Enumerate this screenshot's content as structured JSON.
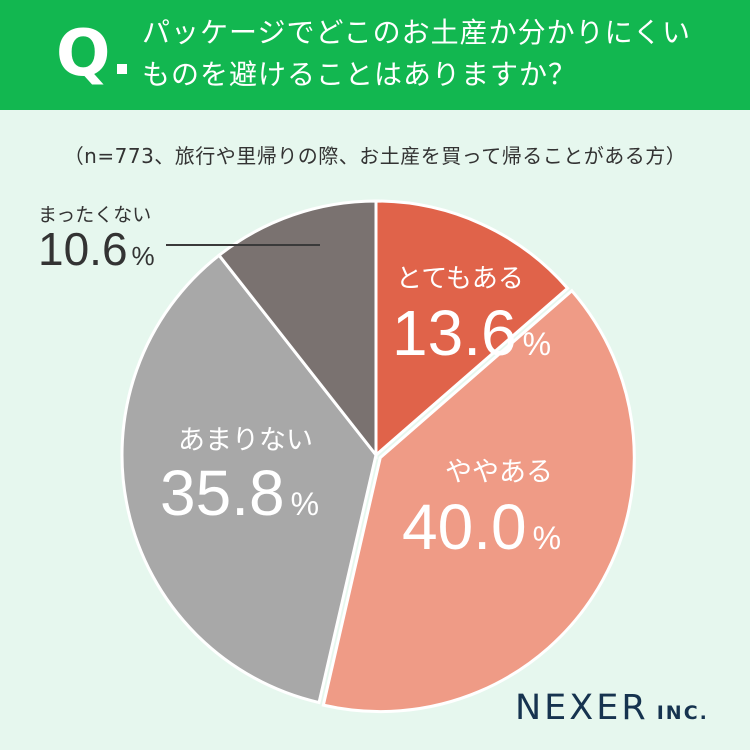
{
  "question": {
    "mark": "Q",
    "line1": "パッケージでどこのお土産か分かりにくい",
    "line2": "ものを避けることはありますか？"
  },
  "sample_note": "（n=773、旅行や里帰りの際、お土産を買って帰ることがある方）",
  "brand": {
    "name": "NEXER",
    "suffix": "INC."
  },
  "colors": {
    "header": "#12b750",
    "background": "#e6f7ee",
    "slice_very": "#e0634a",
    "slice_somewhat": "#ef9b86",
    "slice_notmuch": "#a8a8a8",
    "slice_notatall": "#7a7270",
    "brand": "#16334f"
  },
  "chart_data": {
    "type": "pie",
    "title": "",
    "series": [
      {
        "name": "",
        "slices": [
          {
            "label": "とてもある",
            "value": 13.6,
            "value_text": "13.6",
            "unit": "%"
          },
          {
            "label": "ややある",
            "value": 40.0,
            "value_text": "40.0",
            "unit": "%"
          },
          {
            "label": "あまりない",
            "value": 35.8,
            "value_text": "35.8",
            "unit": "%"
          },
          {
            "label": "まったくない",
            "value": 10.6,
            "value_text": "10.6",
            "unit": "%"
          }
        ]
      }
    ],
    "start": "12 o'clock",
    "direction": "clockwise",
    "exploded_slice": "ややある"
  }
}
